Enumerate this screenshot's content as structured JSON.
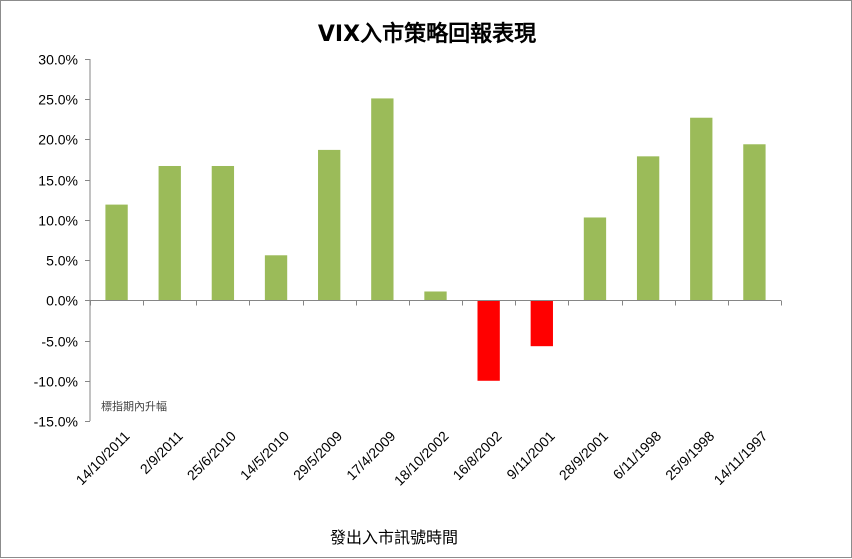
{
  "chart_data": {
    "type": "bar",
    "title": "VIX入市策略回報表現",
    "xlabel": "發出入市訊號時間",
    "ylabel": "",
    "annotation": "標指期內升幅",
    "categories": [
      "14/10/2011",
      "2/9/2011",
      "25/6/2010",
      "14/5/2010",
      "29/5/2009",
      "17/4/2009",
      "18/10/2002",
      "16/8/2002",
      "9/11/2001",
      "28/9/2001",
      "6/11/1998",
      "25/9/1998",
      "14/11/1997"
    ],
    "values": [
      11.9,
      16.7,
      16.7,
      5.6,
      18.7,
      25.1,
      1.1,
      -10.0,
      -5.7,
      10.3,
      17.9,
      22.7,
      19.4
    ],
    "ylim": [
      -15,
      30
    ],
    "ytick_step": 5,
    "ytick_format": "percent-1dp",
    "grid": false,
    "colors": {
      "positive": "#9BBB59",
      "negative": "#FF0000",
      "axis": "#868686"
    }
  }
}
